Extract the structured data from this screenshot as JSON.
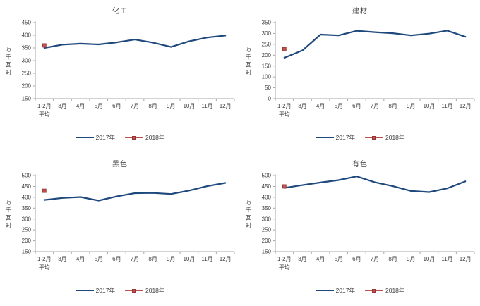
{
  "page": {
    "background": "#ffffff"
  },
  "colors": {
    "line_2017": "#1F497D",
    "marker_2018": "#C0504D",
    "marker_border": "#943634",
    "axis": "#A6A6A6",
    "tick_text": "#404040",
    "title_text": "#3F3F3F"
  },
  "legend": {
    "label_2017": "2017年",
    "label_2018": "2018年"
  },
  "chart_data": [
    {
      "type": "line",
      "title": "化工",
      "ylabel": "万千瓦时",
      "ylabel_chars": [
        "万",
        "千",
        "瓦",
        "时"
      ],
      "categories": [
        [
          "1-2月",
          "平均"
        ],
        [
          "3月"
        ],
        [
          "4月"
        ],
        [
          "5月"
        ],
        [
          "6月"
        ],
        [
          "7月"
        ],
        [
          "8月"
        ],
        [
          "9月"
        ],
        [
          "10月"
        ],
        [
          "11月"
        ],
        [
          "12月"
        ]
      ],
      "ylim": [
        150,
        450
      ],
      "ystep": 50,
      "grid": false,
      "legend_position": "bottom",
      "series": [
        {
          "name": "2017年",
          "values": [
            350,
            363,
            367,
            364,
            372,
            383,
            371,
            354,
            376,
            391,
            399
          ]
        },
        {
          "name": "2018年",
          "values": [
            360
          ]
        }
      ]
    },
    {
      "type": "line",
      "title": "建材",
      "ylabel": "万千瓦时",
      "ylabel_chars": [
        "万",
        "千",
        "瓦",
        "时"
      ],
      "categories": [
        [
          "1-2月",
          "平均"
        ],
        [
          "3月"
        ],
        [
          "4月"
        ],
        [
          "5月"
        ],
        [
          "6月"
        ],
        [
          "7月"
        ],
        [
          "8月"
        ],
        [
          "9月"
        ],
        [
          "10月"
        ],
        [
          "11月"
        ],
        [
          "12月"
        ]
      ],
      "ylim": [
        0,
        350
      ],
      "ystep": 50,
      "grid": false,
      "legend_position": "bottom",
      "series": [
        {
          "name": "2017年",
          "values": [
            188,
            222,
            295,
            291,
            312,
            306,
            301,
            291,
            299,
            313,
            285
          ]
        },
        {
          "name": "2018年",
          "values": [
            228
          ]
        }
      ]
    },
    {
      "type": "line",
      "title": "黑色",
      "ylabel": "万千瓦时",
      "ylabel_chars": [
        "万",
        "千",
        "瓦",
        "时"
      ],
      "categories": [
        [
          "1-2月",
          "平均"
        ],
        [
          "3月"
        ],
        [
          "4月"
        ],
        [
          "5月"
        ],
        [
          "6月"
        ],
        [
          "7月"
        ],
        [
          "8月"
        ],
        [
          "9月"
        ],
        [
          "10月"
        ],
        [
          "11月"
        ],
        [
          "12月"
        ]
      ],
      "ylim": [
        150,
        500
      ],
      "ystep": 50,
      "grid": false,
      "legend_position": "bottom",
      "series": [
        {
          "name": "2017年",
          "values": [
            388,
            397,
            401,
            385,
            404,
            419,
            420,
            415,
            431,
            451,
            466
          ]
        },
        {
          "name": "2018年",
          "values": [
            430
          ]
        }
      ]
    },
    {
      "type": "line",
      "title": "有色",
      "ylabel": "万千瓦时",
      "ylabel_chars": [
        "万",
        "千",
        "瓦",
        "时"
      ],
      "categories": [
        [
          "1-2月",
          "平均"
        ],
        [
          "3月"
        ],
        [
          "4月"
        ],
        [
          "5月"
        ],
        [
          "6月"
        ],
        [
          "7月"
        ],
        [
          "8月"
        ],
        [
          "9月"
        ],
        [
          "10月"
        ],
        [
          "11月"
        ],
        [
          "12月"
        ]
      ],
      "ylim": [
        150,
        500
      ],
      "ystep": 50,
      "grid": false,
      "legend_position": "bottom",
      "series": [
        {
          "name": "2017年",
          "values": [
            443,
            456,
            468,
            479,
            496,
            469,
            451,
            429,
            424,
            441,
            473
          ]
        },
        {
          "name": "2018年",
          "values": [
            450
          ]
        }
      ]
    }
  ]
}
